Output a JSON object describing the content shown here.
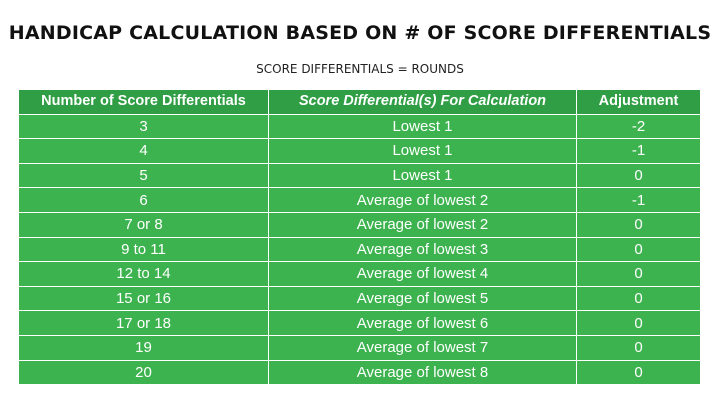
{
  "title": "HANDICAP CALCULATION BASED ON # OF SCORE DIFFERENTIALS",
  "subtitle": "SCORE DIFFERENTIALS = ROUNDS",
  "colors": {
    "header_bg": "#2f9e44",
    "row_bg": "#3db34f",
    "text": "#ffffff"
  },
  "table": {
    "headers": [
      "Number of Score Differentials",
      "Score Differential(s) For Calculation",
      "Adjustment"
    ],
    "rows": [
      [
        "3",
        "Lowest 1",
        "-2"
      ],
      [
        "4",
        "Lowest 1",
        "-1"
      ],
      [
        "5",
        "Lowest 1",
        "0"
      ],
      [
        "6",
        "Average of lowest 2",
        "-1"
      ],
      [
        "7 or 8",
        "Average of lowest 2",
        "0"
      ],
      [
        "9 to 11",
        "Average of lowest 3",
        "0"
      ],
      [
        "12 to 14",
        "Average of lowest 4",
        "0"
      ],
      [
        "15 or 16",
        "Average of lowest 5",
        "0"
      ],
      [
        "17 or 18",
        "Average of lowest 6",
        "0"
      ],
      [
        "19",
        "Average of lowest 7",
        "0"
      ],
      [
        "20",
        "Average of lowest 8",
        "0"
      ]
    ]
  }
}
